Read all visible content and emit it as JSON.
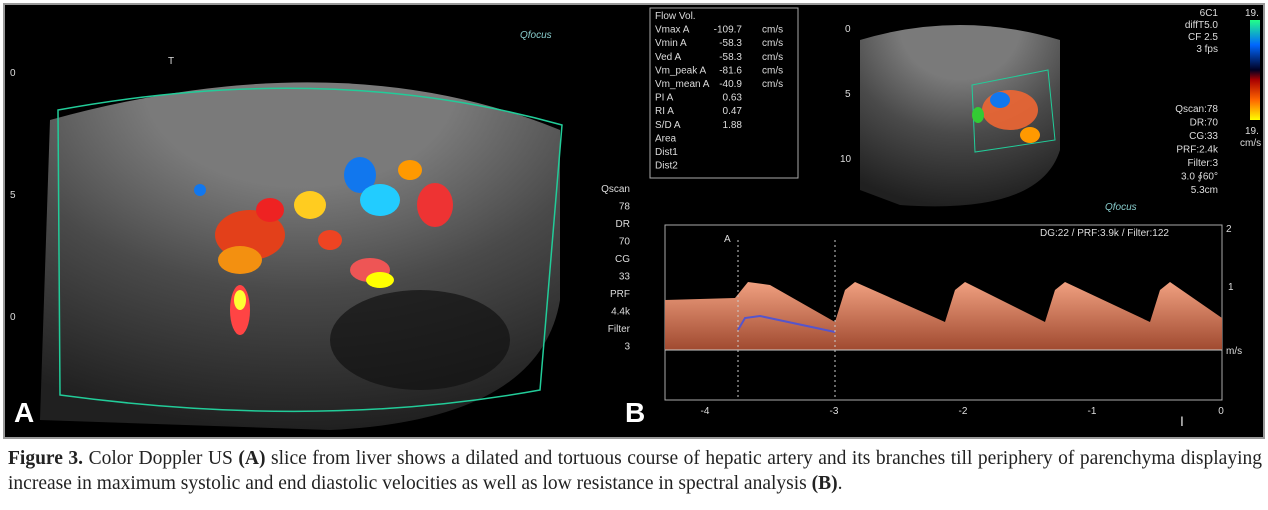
{
  "panel_a": {
    "label": "A",
    "marker": "T",
    "logo": "Qfocus",
    "depth_marks": [
      "0",
      "5",
      "0"
    ],
    "params": [
      "Qscan",
      "78",
      "DR",
      "70",
      "CG",
      "33",
      "PRF",
      "4.4k",
      "Filter",
      "3"
    ]
  },
  "panel_b": {
    "label": "B",
    "measurements": [
      [
        "Flow Vol.",
        "",
        ""
      ],
      [
        "Vmax A",
        "-109.7",
        "cm/s"
      ],
      [
        "Vmin A",
        "-58.3",
        "cm/s"
      ],
      [
        "Ved A",
        "-58.3",
        "cm/s"
      ],
      [
        "Vm_peak A",
        "-81.6",
        "cm/s"
      ],
      [
        "Vm_mean A",
        "-40.9",
        "cm/s"
      ],
      [
        "PI A",
        "0.63",
        ""
      ],
      [
        "RI A",
        "0.47",
        ""
      ],
      [
        "S/D A",
        "1.88",
        ""
      ],
      [
        "Area",
        "",
        ""
      ],
      [
        "Dist1",
        "",
        ""
      ],
      [
        "Dist2",
        "",
        ""
      ]
    ],
    "settings": [
      "6C1",
      "diffT5.0",
      "CF 2.5",
      "3 fps",
      "Qscan:78",
      "DR:70",
      "CG:33",
      "PRF:2.4k",
      "Filter:3",
      "3.0 ∮60°",
      "5.3cm"
    ],
    "depth_marks": [
      "0",
      "5",
      "10"
    ],
    "colorbar": [
      "19.",
      "19.",
      "cm/s"
    ],
    "logo": "Qfocus",
    "spectral_header": "DG:22 /  PRF:3.9k  / Filter:122",
    "cursor": "A",
    "x_ticks": [
      "-4",
      "-3",
      "-2",
      "-1",
      "0"
    ],
    "y_ticks": [
      "2",
      "1",
      "m/s"
    ],
    "footer_mark": "I"
  },
  "caption": {
    "label": "Figure 3.",
    "parts": [
      "Color Doppler US",
      "(A)",
      "slice from liver shows a dilated and tortuous course of hepatic artery and its branches  till periphery of parenchyma displaying increase in maximum systolic and end diastolic velocities as well as low resistance in spectral analysis",
      "(B)",
      "."
    ]
  }
}
